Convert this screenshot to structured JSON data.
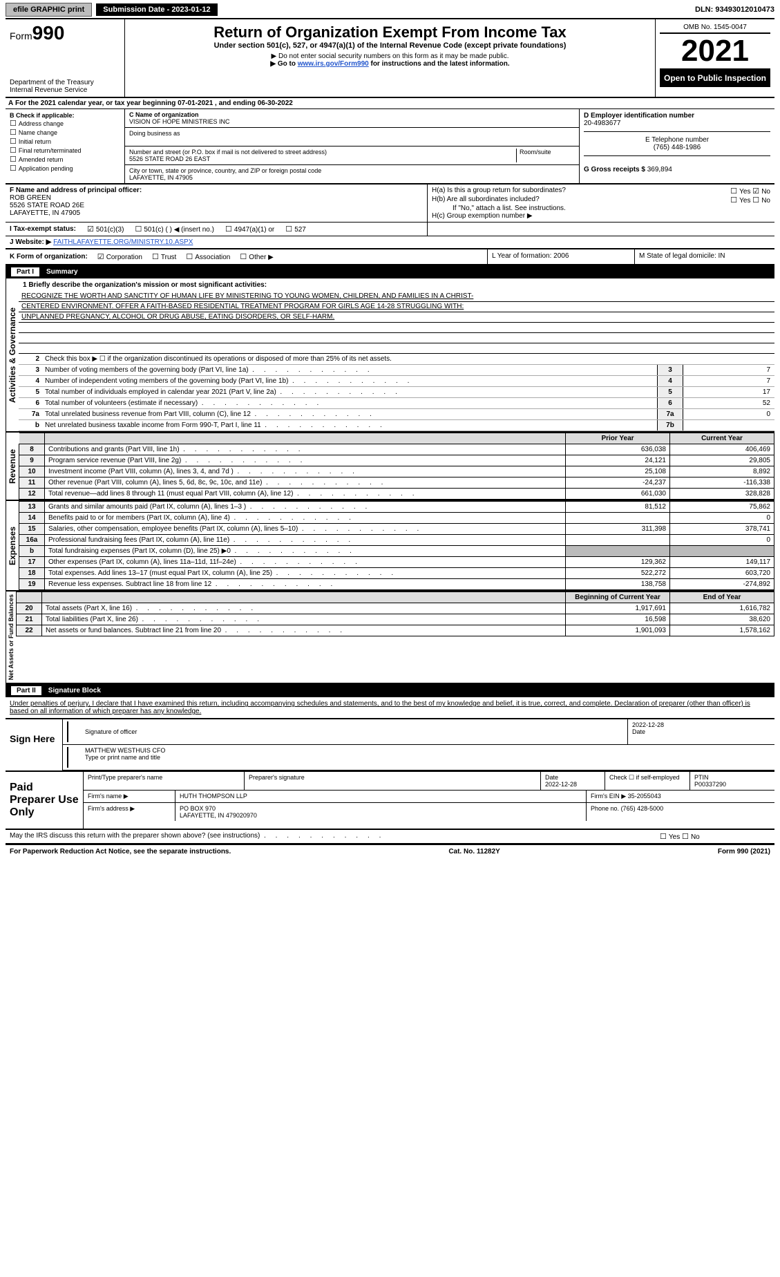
{
  "topbar": {
    "efile": "efile GRAPHIC print",
    "submission": "Submission Date - 2023-01-12",
    "dln": "DLN: 93493012010473"
  },
  "header": {
    "form_prefix": "Form",
    "form_num": "990",
    "title": "Return of Organization Exempt From Income Tax",
    "subtitle": "Under section 501(c), 527, or 4947(a)(1) of the Internal Revenue Code (except private foundations)",
    "note1": "Do not enter social security numbers on this form as it may be made public.",
    "note2_pre": "Go to ",
    "note2_link": "www.irs.gov/Form990",
    "note2_post": " for instructions and the latest information.",
    "dept": "Department of the Treasury",
    "irs": "Internal Revenue Service",
    "omb": "OMB No. 1545-0047",
    "year": "2021",
    "opi": "Open to Public Inspection"
  },
  "fy": {
    "line": "For the 2021 calendar year, or tax year beginning 07-01-2021     , and ending 06-30-2022",
    "prefix": "A"
  },
  "blockB": {
    "label": "B Check if applicable:",
    "opts": [
      "Address change",
      "Name change",
      "Initial return",
      "Final return/terminated",
      "Amended return",
      "Application pending"
    ],
    "c_label": "C Name of organization",
    "c_name": "VISION OF HOPE MINISTRIES INC",
    "dba_label": "Doing business as",
    "addr_label": "Number and street (or P.O. box if mail is not delivered to street address)",
    "room": "Room/suite",
    "addr": "5526 STATE ROAD 26 EAST",
    "city_label": "City or town, state or province, country, and ZIP or foreign postal code",
    "city": "LAFAYETTE, IN  47905",
    "d_label": "D Employer identification number",
    "d_val": "20-4983677",
    "e_label": "E Telephone number",
    "e_val": "(765) 448-1986",
    "g_label": "G Gross receipts $",
    "g_val": "369,894"
  },
  "fgrid": {
    "f_label": "F  Name and address of principal officer:",
    "f_name": "ROB GREEN",
    "f_addr1": "5526 STATE ROAD 26E",
    "f_addr2": "LAFAYETTE, IN  47905",
    "ha": "H(a)  Is this a group return for subordinates?",
    "hb": "H(b)  Are all subordinates included?",
    "hb_note": "If \"No,\" attach a list. See instructions.",
    "hc": "H(c)  Group exemption number ▶",
    "yes": "Yes",
    "no": "No"
  },
  "irow": {
    "label": "I   Tax-exempt status:",
    "o1": "501(c)(3)",
    "o2": "501(c) (   ) ◀ (insert no.)",
    "o3": "4947(a)(1) or",
    "o4": "527"
  },
  "jrow": {
    "label": "J   Website: ▶",
    "val": "FAITHLAFAYETTE.ORG/MINISTRY.10.ASPX"
  },
  "krow": {
    "label": "K Form of organization:",
    "opts": [
      "Corporation",
      "Trust",
      "Association",
      "Other ▶"
    ],
    "l": "L Year of formation: 2006",
    "m": "M State of legal domicile: IN"
  },
  "part1": {
    "hdr": "Part I",
    "title": "Summary",
    "q1": "1  Briefly describe the organization's mission or most significant activities:",
    "mission1": "RECOGNIZE THE WORTH AND SANCTITY OF HUMAN LIFE BY MINISTERING TO YOUNG WOMEN, CHILDREN, AND FAMILIES IN A CHRIST-",
    "mission2": "CENTERED ENVIRONMENT. OFFER A FAITH-BASED RESIDENTIAL TREATMENT PROGRAM FOR GIRLS AGE 14-28 STRUGGLING WITH:",
    "mission3": "UNPLANNED PREGNANCY, ALCOHOL OR DRUG ABUSE, EATING DISORDERS, OR SELF-HARM.",
    "q2": "Check this box ▶ ☐ if the organization discontinued its operations or disposed of more than 25% of its net assets.",
    "gov": [
      {
        "n": "3",
        "d": "Number of voting members of the governing body (Part VI, line 1a)",
        "b": "3",
        "v": "7"
      },
      {
        "n": "4",
        "d": "Number of independent voting members of the governing body (Part VI, line 1b)",
        "b": "4",
        "v": "7"
      },
      {
        "n": "5",
        "d": "Total number of individuals employed in calendar year 2021 (Part V, line 2a)",
        "b": "5",
        "v": "17"
      },
      {
        "n": "6",
        "d": "Total number of volunteers (estimate if necessary)",
        "b": "6",
        "v": "52"
      },
      {
        "n": "7a",
        "d": "Total unrelated business revenue from Part VIII, column (C), line 12",
        "b": "7a",
        "v": "0"
      },
      {
        "n": "b",
        "d": "Net unrelated business taxable income from Form 990-T, Part I, line 11",
        "b": "7b",
        "v": ""
      }
    ],
    "cols": {
      "prior": "Prior Year",
      "current": "Current Year"
    },
    "rev_label": "Revenue",
    "rev": [
      {
        "n": "8",
        "d": "Contributions and grants (Part VIII, line 1h)",
        "p": "636,038",
        "c": "406,469"
      },
      {
        "n": "9",
        "d": "Program service revenue (Part VIII, line 2g)",
        "p": "24,121",
        "c": "29,805"
      },
      {
        "n": "10",
        "d": "Investment income (Part VIII, column (A), lines 3, 4, and 7d )",
        "p": "25,108",
        "c": "8,892"
      },
      {
        "n": "11",
        "d": "Other revenue (Part VIII, column (A), lines 5, 6d, 8c, 9c, 10c, and 11e)",
        "p": "-24,237",
        "c": "-116,338"
      },
      {
        "n": "12",
        "d": "Total revenue—add lines 8 through 11 (must equal Part VIII, column (A), line 12)",
        "p": "661,030",
        "c": "328,828"
      }
    ],
    "exp_label": "Expenses",
    "exp": [
      {
        "n": "13",
        "d": "Grants and similar amounts paid (Part IX, column (A), lines 1–3 )",
        "p": "81,512",
        "c": "75,862"
      },
      {
        "n": "14",
        "d": "Benefits paid to or for members (Part IX, column (A), line 4)",
        "p": "",
        "c": "0"
      },
      {
        "n": "15",
        "d": "Salaries, other compensation, employee benefits (Part IX, column (A), lines 5–10)",
        "p": "311,398",
        "c": "378,741"
      },
      {
        "n": "16a",
        "d": "Professional fundraising fees (Part IX, column (A), line 11e)",
        "p": "",
        "c": "0"
      },
      {
        "n": "b",
        "d": "Total fundraising expenses (Part IX, column (D), line 25) ▶0",
        "p": "",
        "c": "",
        "shade": true
      },
      {
        "n": "17",
        "d": "Other expenses (Part IX, column (A), lines 11a–11d, 11f–24e)",
        "p": "129,362",
        "c": "149,117"
      },
      {
        "n": "18",
        "d": "Total expenses. Add lines 13–17 (must equal Part IX, column (A), line 25)",
        "p": "522,272",
        "c": "603,720"
      },
      {
        "n": "19",
        "d": "Revenue less expenses. Subtract line 18 from line 12",
        "p": "138,758",
        "c": "-274,892"
      }
    ],
    "na_label": "Net Assets or Fund Balances",
    "na_cols": {
      "beg": "Beginning of Current Year",
      "end": "End of Year"
    },
    "na": [
      {
        "n": "20",
        "d": "Total assets (Part X, line 16)",
        "p": "1,917,691",
        "c": "1,616,782"
      },
      {
        "n": "21",
        "d": "Total liabilities (Part X, line 26)",
        "p": "16,598",
        "c": "38,620"
      },
      {
        "n": "22",
        "d": "Net assets or fund balances. Subtract line 21 from line 20",
        "p": "1,901,093",
        "c": "1,578,162"
      }
    ],
    "gov_label": "Activities & Governance"
  },
  "part2": {
    "hdr": "Part II",
    "title": "Signature Block",
    "cert": "Under penalties of perjury, I declare that I have examined this return, including accompanying schedules and statements, and to the best of my knowledge and belief, it is true, correct, and complete. Declaration of preparer (other than officer) is based on all information of which preparer has any knowledge.",
    "sign": "Sign Here",
    "sig_of": "Signature of officer",
    "date": "Date",
    "sig_date": "2022-12-28",
    "name": "MATTHEW WESTHUIS  CFO",
    "name_lbl": "Type or print name and title",
    "paid": "Paid Preparer Use Only",
    "p_name_lbl": "Print/Type preparer's name",
    "p_sig_lbl": "Preparer's signature",
    "p_date": "2022-12-28",
    "p_self": "Check ☐ if self-employed",
    "ptin_lbl": "PTIN",
    "ptin": "P00337290",
    "firm_lbl": "Firm's name      ▶",
    "firm": "HUTH THOMPSON LLP",
    "fein_lbl": "Firm's EIN ▶",
    "fein": "35-2055043",
    "faddr_lbl": "Firm's address ▶",
    "faddr1": "PO BOX 970",
    "faddr2": "LAFAYETTE, IN  479020970",
    "phone_lbl": "Phone no.",
    "phone": "(765) 428-5000",
    "may": "May the IRS discuss this return with the preparer shown above? (see instructions)",
    "yes": "Yes",
    "no": "No"
  },
  "footer": {
    "pra": "For Paperwork Reduction Act Notice, see the separate instructions.",
    "cat": "Cat. No. 11282Y",
    "form": "Form 990 (2021)"
  }
}
